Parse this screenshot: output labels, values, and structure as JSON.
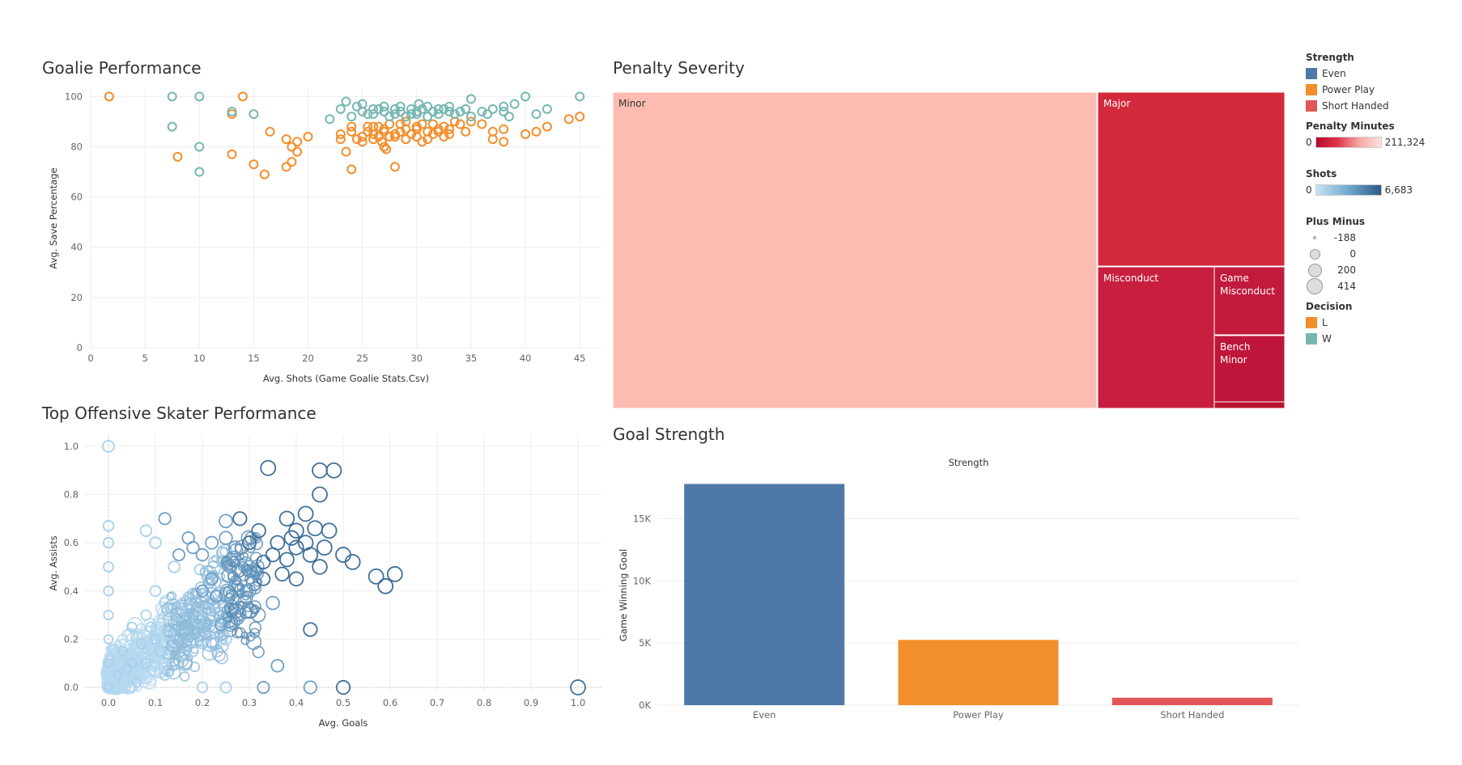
{
  "chart_data": [
    {
      "type": "scatter",
      "title": "Goalie Performance",
      "xlabel": "Avg. Shots (Game Goalie Stats.Csv)",
      "ylabel": "Avg. Save Percentage",
      "xlim": [
        0,
        47
      ],
      "ylim": [
        0,
        103
      ],
      "xticks": [
        "0",
        "5",
        "10",
        "15",
        "20",
        "25",
        "30",
        "35",
        "40",
        "45"
      ],
      "yticks": [
        "0",
        "20",
        "40",
        "60",
        "80",
        "100"
      ],
      "legend": {
        "title": "Decision",
        "items": [
          {
            "name": "L",
            "color": "#f28e2b"
          },
          {
            "name": "W",
            "color": "#76b7b2"
          }
        ]
      },
      "series": [
        {
          "name": "L",
          "color": "#f28e2b",
          "points": [
            [
              1.7,
              100
            ],
            [
              8,
              76
            ],
            [
              13,
              93
            ],
            [
              13,
              77
            ],
            [
              14,
              100
            ],
            [
              15,
              73
            ],
            [
              16,
              69
            ],
            [
              16.5,
              86
            ],
            [
              18,
              83
            ],
            [
              18,
              72
            ],
            [
              18.5,
              74
            ],
            [
              18.5,
              80
            ],
            [
              19,
              78
            ],
            [
              19,
              82
            ],
            [
              20,
              84
            ],
            [
              23,
              83
            ],
            [
              23.5,
              78
            ],
            [
              24,
              71
            ],
            [
              24,
              88
            ],
            [
              24.5,
              83
            ],
            [
              25,
              82
            ],
            [
              25.5,
              86
            ],
            [
              26,
              88
            ],
            [
              26,
              83
            ],
            [
              26.5,
              84
            ],
            [
              27,
              87
            ],
            [
              27,
              80
            ],
            [
              27.5,
              89
            ],
            [
              28,
              84
            ],
            [
              28,
              72
            ],
            [
              28.5,
              86
            ],
            [
              29,
              83
            ],
            [
              29,
              90
            ],
            [
              29.5,
              85
            ],
            [
              30,
              87
            ],
            [
              30,
              88
            ],
            [
              30.5,
              82
            ],
            [
              31,
              86
            ],
            [
              31.5,
              89
            ],
            [
              32,
              87
            ],
            [
              32.5,
              88
            ],
            [
              33,
              85
            ],
            [
              33,
              87
            ],
            [
              33.5,
              90
            ],
            [
              34,
              89
            ],
            [
              34.5,
              86
            ],
            [
              35,
              90
            ],
            [
              36,
              89
            ],
            [
              37,
              86
            ],
            [
              37,
              83
            ],
            [
              38,
              87
            ],
            [
              38,
              82
            ],
            [
              40,
              85
            ],
            [
              41,
              86
            ],
            [
              42,
              88
            ],
            [
              44,
              91
            ],
            [
              45,
              92
            ],
            [
              25,
              84
            ],
            [
              26,
              85
            ],
            [
              26.5,
              88
            ],
            [
              27,
              86
            ],
            [
              28,
              85
            ],
            [
              29,
              87
            ],
            [
              30,
              84
            ],
            [
              31,
              83
            ],
            [
              32,
              86
            ],
            [
              25.5,
              88
            ],
            [
              27.5,
              84
            ],
            [
              28.5,
              89
            ],
            [
              24,
              86
            ],
            [
              23,
              85
            ],
            [
              30.5,
              89
            ],
            [
              31.5,
              85
            ],
            [
              32.5,
              84
            ],
            [
              26.8,
              82
            ],
            [
              27.2,
              79
            ]
          ]
        },
        {
          "name": "W",
          "color": "#76b7b2",
          "points": [
            [
              7.5,
              100
            ],
            [
              7.5,
              88
            ],
            [
              10,
              100
            ],
            [
              10,
              80
            ],
            [
              10,
              70
            ],
            [
              13,
              94
            ],
            [
              15,
              93
            ],
            [
              22,
              91
            ],
            [
              23,
              95
            ],
            [
              23.5,
              98
            ],
            [
              24,
              92
            ],
            [
              25,
              94
            ],
            [
              25,
              97
            ],
            [
              26,
              93
            ],
            [
              26.5,
              95
            ],
            [
              27,
              94
            ],
            [
              27.5,
              92
            ],
            [
              28,
              95
            ],
            [
              28,
              93
            ],
            [
              28.5,
              94
            ],
            [
              29,
              92
            ],
            [
              29.5,
              95
            ],
            [
              30,
              94
            ],
            [
              30,
              93
            ],
            [
              30.5,
              95
            ],
            [
              31,
              92
            ],
            [
              31.5,
              94
            ],
            [
              32,
              93
            ],
            [
              32.5,
              95
            ],
            [
              33,
              94
            ],
            [
              33.5,
              93
            ],
            [
              34,
              94
            ],
            [
              35,
              92
            ],
            [
              35,
              99
            ],
            [
              36,
              94
            ],
            [
              37,
              95
            ],
            [
              38,
              94
            ],
            [
              38,
              96
            ],
            [
              38.5,
              92
            ],
            [
              39,
              97
            ],
            [
              40,
              100
            ],
            [
              41,
              93
            ],
            [
              42,
              95
            ],
            [
              45,
              100
            ],
            [
              26,
              95
            ],
            [
              27,
              96
            ],
            [
              28.5,
              96
            ],
            [
              29.5,
              93
            ],
            [
              31,
              96
            ],
            [
              32,
              95
            ],
            [
              33,
              96
            ],
            [
              34.5,
              95
            ],
            [
              24.5,
              96
            ],
            [
              25.5,
              93
            ],
            [
              30.2,
              97
            ],
            [
              36.5,
              93
            ]
          ]
        }
      ]
    },
    {
      "type": "treemap",
      "title": "Penalty Severity",
      "legend": {
        "title": "Penalty Minutes",
        "min": "0",
        "max": "211,324"
      },
      "items": [
        {
          "name": "Minor",
          "color": "#fdbcb1"
        },
        {
          "name": "Major",
          "color": "#d3293b"
        },
        {
          "name": "Misconduct",
          "color": "#c81f40"
        },
        {
          "name": "Game Misconduct",
          "color": "#c21a3c"
        },
        {
          "name": "Bench Minor",
          "color": "#be163a"
        }
      ]
    },
    {
      "type": "scatter",
      "title": "Top Offensive Skater Performance",
      "xlabel": "Avg. Goals",
      "ylabel": "Avg. Assists",
      "xlim": [
        -0.05,
        1.05
      ],
      "ylim": [
        -0.02,
        1.05
      ],
      "xticks": [
        "0.0",
        "0.1",
        "0.2",
        "0.3",
        "0.4",
        "0.5",
        "0.6",
        "0.7",
        "0.8",
        "0.9",
        "1.0"
      ],
      "yticks": [
        "0.0",
        "0.2",
        "0.4",
        "0.6",
        "0.8",
        "1.0"
      ],
      "legend": {
        "title": "Shots",
        "min": "0",
        "max": "6,683",
        "size_title": "Plus Minus",
        "size_values": [
          "-188",
          "0",
          "200",
          "414"
        ]
      },
      "points": [
        [
          0,
          1.0
        ],
        [
          0,
          0.67
        ],
        [
          0,
          0.6
        ],
        [
          0,
          0.5
        ],
        [
          0,
          0.4
        ],
        [
          0,
          0.3
        ],
        [
          0,
          0.2
        ],
        [
          0,
          0.1
        ],
        [
          0,
          0
        ],
        [
          0.02,
          0.05
        ],
        [
          0.03,
          0.15
        ],
        [
          0.05,
          0.25
        ],
        [
          0.05,
          0.1
        ],
        [
          0.08,
          0.3
        ],
        [
          0.08,
          0.65
        ],
        [
          0.1,
          0.6
        ],
        [
          0.12,
          0.7
        ],
        [
          0.1,
          0.4
        ],
        [
          0.12,
          0.35
        ],
        [
          0.14,
          0.5
        ],
        [
          0.15,
          0.55
        ],
        [
          0.17,
          0.62
        ],
        [
          0.18,
          0.58
        ],
        [
          0.2,
          0.4
        ],
        [
          0.2,
          0.55
        ],
        [
          0.22,
          0.6
        ],
        [
          0.25,
          0.62
        ],
        [
          0.25,
          0.69
        ],
        [
          0.26,
          0.5
        ],
        [
          0.28,
          0.7
        ],
        [
          0.3,
          0.6
        ],
        [
          0.32,
          0.65
        ],
        [
          0.34,
          0.91
        ],
        [
          0.36,
          0.6
        ],
        [
          0.38,
          0.7
        ],
        [
          0.4,
          0.65
        ],
        [
          0.42,
          0.72
        ],
        [
          0.43,
          0.55
        ],
        [
          0.45,
          0.8
        ],
        [
          0.45,
          0.9
        ],
        [
          0.47,
          0.65
        ],
        [
          0.48,
          0.9
        ],
        [
          0.5,
          0.55
        ],
        [
          0.52,
          0.52
        ],
        [
          0.57,
          0.46
        ],
        [
          0.59,
          0.42
        ],
        [
          0.61,
          0.47
        ],
        [
          0.45,
          0.5
        ],
        [
          0.4,
          0.45
        ],
        [
          0.3,
          0.4
        ],
        [
          0.28,
          0.3
        ],
        [
          0.35,
          0.35
        ],
        [
          0.25,
          0.2
        ],
        [
          0.15,
          0.3
        ],
        [
          0.18,
          0.15
        ],
        [
          0.1,
          0.2
        ],
        [
          0.08,
          0.1
        ],
        [
          0.12,
          0.05
        ],
        [
          0.2,
          0
        ],
        [
          0.25,
          0
        ],
        [
          0.33,
          0
        ],
        [
          0.43,
          0
        ],
        [
          0.5,
          0
        ],
        [
          1.0,
          0
        ],
        [
          0.36,
          0.09
        ],
        [
          0.43,
          0.24
        ],
        [
          0.38,
          0.53
        ],
        [
          0.33,
          0.45
        ],
        [
          0.22,
          0.45
        ],
        [
          0.27,
          0.58
        ],
        [
          0.3,
          0.5
        ],
        [
          0.35,
          0.55
        ],
        [
          0.4,
          0.58
        ],
        [
          0.06,
          0.02
        ],
        [
          0.04,
          0.08
        ],
        [
          0.07,
          0.18
        ],
        [
          0.09,
          0.25
        ],
        [
          0.11,
          0.15
        ],
        [
          0.13,
          0.22
        ],
        [
          0.16,
          0.35
        ],
        [
          0.19,
          0.28
        ],
        [
          0.21,
          0.32
        ],
        [
          0.23,
          0.38
        ],
        [
          0.24,
          0.26
        ],
        [
          0.27,
          0.42
        ],
        [
          0.29,
          0.36
        ],
        [
          0.31,
          0.48
        ],
        [
          0.33,
          0.52
        ],
        [
          0.37,
          0.47
        ],
        [
          0.39,
          0.62
        ],
        [
          0.42,
          0.6
        ],
        [
          0.44,
          0.66
        ],
        [
          0.46,
          0.58
        ]
      ]
    },
    {
      "type": "bar",
      "title": "Goal Strength",
      "column_header": "Strength",
      "ylabel": "Game Winning Goal",
      "ylim": [
        0,
        19000
      ],
      "yticks": [
        "0K",
        "5K",
        "10K",
        "15K"
      ],
      "categories": [
        "Even",
        "Power Play",
        "Short Handed"
      ],
      "values": [
        17800,
        5250,
        600
      ],
      "colors": [
        "#4e79a7",
        "#f28e2b",
        "#e15759"
      ],
      "legend": {
        "title": "Strength",
        "items": [
          {
            "name": "Even",
            "color": "#4e79a7"
          },
          {
            "name": "Power Play",
            "color": "#f28e2b"
          },
          {
            "name": "Short Handed",
            "color": "#e15759"
          }
        ]
      }
    }
  ]
}
